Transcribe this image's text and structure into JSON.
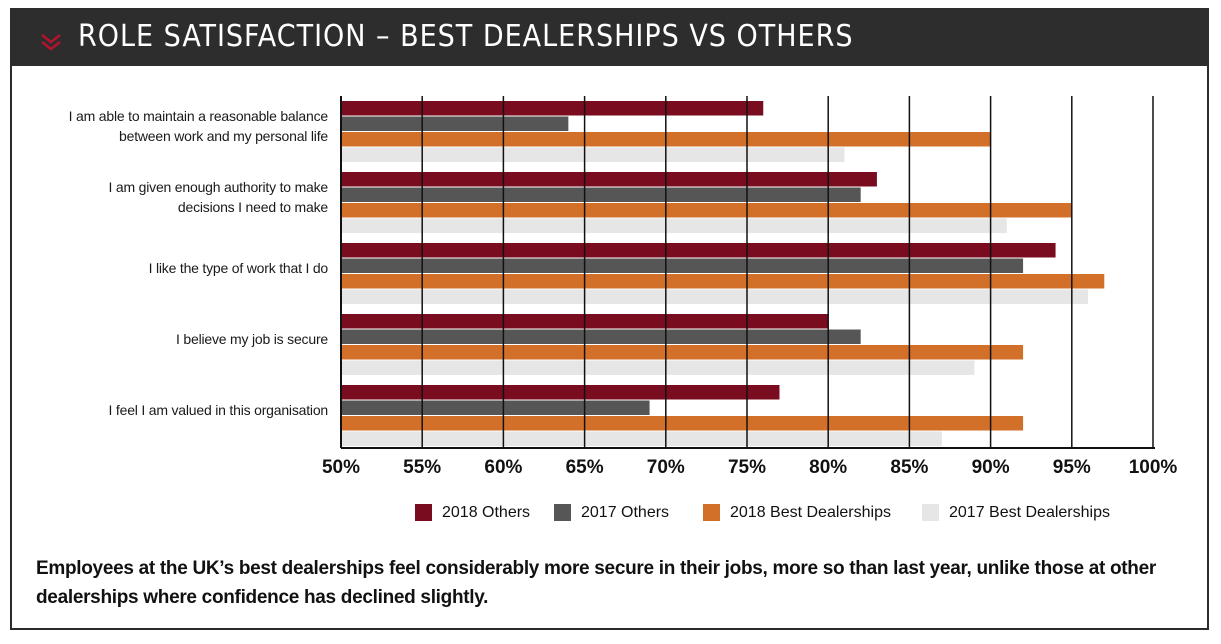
{
  "header": {
    "title": "ROLE SATISFACTION – BEST DEALERSHIPS VS OTHERS",
    "icon": "double-chevron-down-icon"
  },
  "colors": {
    "2018 Others": "#7a0c1f",
    "2017 Others": "#565656",
    "2018 Best Dealerships": "#d2702a",
    "2017 Best Dealerships": "#e6e6e6",
    "header_bg": "#2d2d2d"
  },
  "chart_data": {
    "type": "bar",
    "orientation": "horizontal",
    "title": "ROLE SATISFACTION – BEST DEALERSHIPS VS OTHERS",
    "categories": [
      "I am able to maintain a reasonable balance between work and my personal life",
      "I am given enough authority to make decisions I need to make",
      "I like the type of work that I do",
      "I believe my job is secure",
      "I feel I am valued in this organisation"
    ],
    "category_lines": [
      [
        "I am able to maintain a reasonable balance",
        "between work and my personal life"
      ],
      [
        "I am given enough authority to make",
        "decisions I need to make"
      ],
      [
        "I like the type of work that I do"
      ],
      [
        "I believe my job is secure"
      ],
      [
        "I feel I am valued in this organisation"
      ]
    ],
    "series": [
      {
        "name": "2018 Others",
        "values": [
          76,
          83,
          94,
          80,
          77
        ]
      },
      {
        "name": "2017 Others",
        "values": [
          64,
          82,
          92,
          82,
          69
        ]
      },
      {
        "name": "2018 Best Dealerships",
        "values": [
          90,
          95,
          97,
          92,
          92
        ]
      },
      {
        "name": "2017 Best Dealerships",
        "values": [
          81,
          91,
          96,
          89,
          87
        ]
      }
    ],
    "xlim": [
      50,
      100
    ],
    "ticks": [
      "50%",
      "55%",
      "60%",
      "65%",
      "70%",
      "75%",
      "80%",
      "85%",
      "90%",
      "95%",
      "100%"
    ],
    "grid": true,
    "legend_position": "bottom"
  },
  "footnote": "Employees at the UK’s best dealerships feel considerably more secure in their jobs, more so than last year, unlike those at other dealerships where confidence has declined slightly."
}
